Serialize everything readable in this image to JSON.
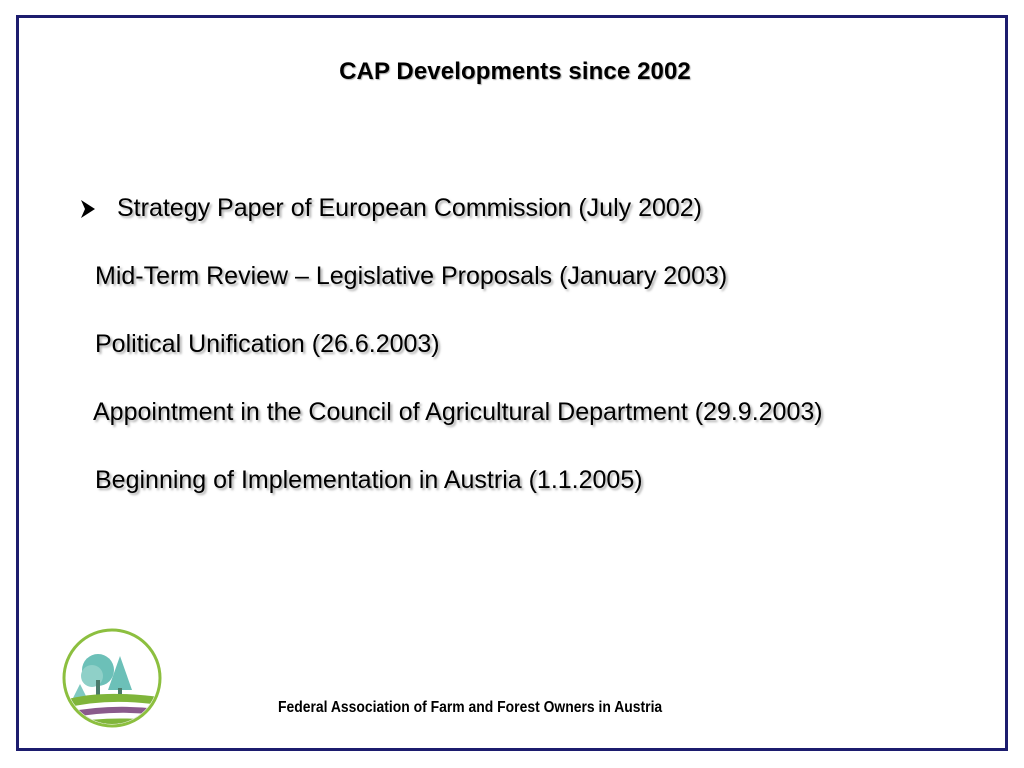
{
  "slide": {
    "title": "CAP Developments since 2002",
    "items": [
      {
        "text": "Strategy Paper of European Commission (July 2002)"
      },
      {
        "text": "Mid-Term Review – Legislative Proposals (January 2003)"
      },
      {
        "text": "Political Unification (26.6.2003)"
      },
      {
        "text": "Appointment in the Council of Agricultural Department (29.9.2003)"
      },
      {
        "text": "Beginning of Implementation in Austria (1.1.2005)"
      }
    ],
    "footer": "Federal Association of Farm and Forest Owners in Austria"
  },
  "icons": {
    "bullet": "arrowhead-bullet-icon",
    "logo": "tree-field-logo-icon"
  },
  "colors": {
    "frame": "#1c1c6e",
    "logo_ring": "#8cbf3f",
    "logo_trees": "#6cc0b8",
    "logo_field_green": "#7fb53a",
    "logo_field_purple": "#8a5a8c"
  }
}
